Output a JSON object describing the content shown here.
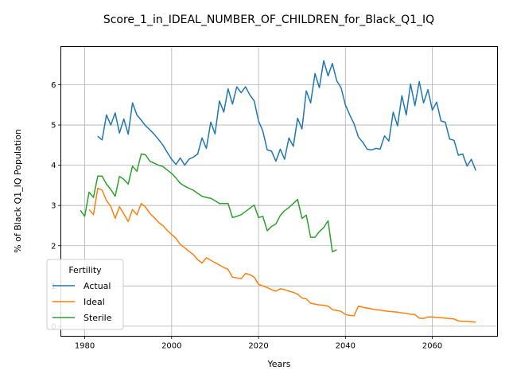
{
  "chart_data": {
    "type": "line",
    "title": "Score_1_in_IDEAL_NUMBER_OF_CHILDREN_for_Black_Q1_IQ",
    "xlabel": "Years",
    "ylabel": "% of Black Q1_IQ Population",
    "xlim": [
      1974.5,
      2075
    ],
    "ylim": [
      -0.25,
      6.95
    ],
    "xticks": [
      1980,
      2000,
      2020,
      2040,
      2060
    ],
    "yticks": [
      0,
      1,
      2,
      3,
      4,
      5,
      6
    ],
    "grid": true,
    "legend": {
      "title": "Fertility",
      "placement": "lower-left"
    },
    "series": [
      {
        "name": "Actual",
        "color": "#1f77b4",
        "points": [
          [
            1983,
            4.72
          ],
          [
            1984,
            4.63
          ],
          [
            1985,
            5.25
          ],
          [
            1986,
            5.0
          ],
          [
            1987,
            5.3
          ],
          [
            1988,
            4.8
          ],
          [
            1989,
            5.15
          ],
          [
            1990,
            4.77
          ],
          [
            1991,
            5.55
          ],
          [
            1992,
            5.25
          ],
          [
            1993,
            5.12
          ],
          [
            1994,
            4.98
          ],
          [
            1995,
            4.88
          ],
          [
            1996,
            4.77
          ],
          [
            1997,
            4.64
          ],
          [
            1998,
            4.5
          ],
          [
            1999,
            4.32
          ],
          [
            2000,
            4.15
          ],
          [
            2001,
            4.02
          ],
          [
            2002,
            4.18
          ],
          [
            2003,
            4.0
          ],
          [
            2004,
            4.15
          ],
          [
            2005,
            4.2
          ],
          [
            2006,
            4.28
          ],
          [
            2007,
            4.68
          ],
          [
            2008,
            4.42
          ],
          [
            2009,
            5.07
          ],
          [
            2010,
            4.78
          ],
          [
            2011,
            5.6
          ],
          [
            2012,
            5.32
          ],
          [
            2013,
            5.9
          ],
          [
            2014,
            5.52
          ],
          [
            2015,
            5.95
          ],
          [
            2016,
            5.8
          ],
          [
            2017,
            5.95
          ],
          [
            2018,
            5.75
          ],
          [
            2019,
            5.6
          ],
          [
            2020,
            5.1
          ],
          [
            2021,
            4.85
          ],
          [
            2022,
            4.38
          ],
          [
            2023,
            4.35
          ],
          [
            2024,
            4.1
          ],
          [
            2025,
            4.4
          ],
          [
            2026,
            4.15
          ],
          [
            2027,
            4.68
          ],
          [
            2028,
            4.47
          ],
          [
            2029,
            5.17
          ],
          [
            2030,
            4.9
          ],
          [
            2031,
            5.85
          ],
          [
            2032,
            5.55
          ],
          [
            2033,
            6.28
          ],
          [
            2034,
            5.93
          ],
          [
            2035,
            6.6
          ],
          [
            2036,
            6.22
          ],
          [
            2037,
            6.53
          ],
          [
            2038,
            6.1
          ],
          [
            2039,
            5.93
          ],
          [
            2040,
            5.5
          ],
          [
            2041,
            5.25
          ],
          [
            2042,
            5.03
          ],
          [
            2043,
            4.7
          ],
          [
            2044,
            4.57
          ],
          [
            2045,
            4.4
          ],
          [
            2046,
            4.38
          ],
          [
            2047,
            4.42
          ],
          [
            2048,
            4.4
          ],
          [
            2049,
            4.73
          ],
          [
            2050,
            4.6
          ],
          [
            2051,
            5.32
          ],
          [
            2052,
            4.98
          ],
          [
            2053,
            5.73
          ],
          [
            2054,
            5.25
          ],
          [
            2055,
            6.02
          ],
          [
            2056,
            5.48
          ],
          [
            2057,
            6.08
          ],
          [
            2058,
            5.55
          ],
          [
            2059,
            5.88
          ],
          [
            2060,
            5.37
          ],
          [
            2061,
            5.57
          ],
          [
            2062,
            5.1
          ],
          [
            2063,
            5.07
          ],
          [
            2064,
            4.65
          ],
          [
            2065,
            4.62
          ],
          [
            2066,
            4.25
          ],
          [
            2067,
            4.28
          ],
          [
            2068,
            3.98
          ],
          [
            2069,
            4.15
          ],
          [
            2070,
            3.87
          ]
        ]
      },
      {
        "name": "Ideal",
        "color": "#ff7f0e",
        "points": [
          [
            1981,
            2.9
          ],
          [
            1982,
            2.77
          ],
          [
            1983,
            3.43
          ],
          [
            1984,
            3.38
          ],
          [
            1985,
            3.12
          ],
          [
            1986,
            2.98
          ],
          [
            1987,
            2.68
          ],
          [
            1988,
            2.97
          ],
          [
            1989,
            2.79
          ],
          [
            1990,
            2.6
          ],
          [
            1991,
            2.9
          ],
          [
            1992,
            2.77
          ],
          [
            1993,
            3.05
          ],
          [
            1994,
            2.96
          ],
          [
            1995,
            2.8
          ],
          [
            1996,
            2.7
          ],
          [
            1997,
            2.58
          ],
          [
            1998,
            2.5
          ],
          [
            1999,
            2.38
          ],
          [
            2000,
            2.28
          ],
          [
            2001,
            2.18
          ],
          [
            2002,
            2.03
          ],
          [
            2003,
            1.95
          ],
          [
            2004,
            1.86
          ],
          [
            2005,
            1.78
          ],
          [
            2006,
            1.65
          ],
          [
            2007,
            1.57
          ],
          [
            2008,
            1.7
          ],
          [
            2009,
            1.64
          ],
          [
            2010,
            1.58
          ],
          [
            2011,
            1.52
          ],
          [
            2012,
            1.46
          ],
          [
            2013,
            1.41
          ],
          [
            2014,
            1.22
          ],
          [
            2015,
            1.2
          ],
          [
            2016,
            1.18
          ],
          [
            2017,
            1.31
          ],
          [
            2018,
            1.28
          ],
          [
            2019,
            1.22
          ],
          [
            2020,
            1.04
          ],
          [
            2021,
            1.0
          ],
          [
            2022,
            0.96
          ],
          [
            2023,
            0.91
          ],
          [
            2024,
            0.87
          ],
          [
            2025,
            0.93
          ],
          [
            2026,
            0.91
          ],
          [
            2027,
            0.87
          ],
          [
            2028,
            0.84
          ],
          [
            2029,
            0.8
          ],
          [
            2030,
            0.7
          ],
          [
            2031,
            0.68
          ],
          [
            2032,
            0.57
          ],
          [
            2033,
            0.55
          ],
          [
            2034,
            0.53
          ],
          [
            2035,
            0.52
          ],
          [
            2036,
            0.5
          ],
          [
            2037,
            0.41
          ],
          [
            2038,
            0.39
          ],
          [
            2039,
            0.37
          ],
          [
            2040,
            0.29
          ],
          [
            2041,
            0.27
          ],
          [
            2042,
            0.26
          ],
          [
            2043,
            0.5
          ],
          [
            2044,
            0.47
          ],
          [
            2045,
            0.45
          ],
          [
            2046,
            0.43
          ],
          [
            2047,
            0.41
          ],
          [
            2048,
            0.4
          ],
          [
            2049,
            0.38
          ],
          [
            2050,
            0.37
          ],
          [
            2051,
            0.36
          ],
          [
            2052,
            0.35
          ],
          [
            2053,
            0.33
          ],
          [
            2054,
            0.32
          ],
          [
            2055,
            0.3
          ],
          [
            2056,
            0.29
          ],
          [
            2057,
            0.2
          ],
          [
            2058,
            0.19
          ],
          [
            2059,
            0.23
          ],
          [
            2060,
            0.23
          ],
          [
            2061,
            0.22
          ],
          [
            2062,
            0.21
          ],
          [
            2063,
            0.2
          ],
          [
            2064,
            0.19
          ],
          [
            2065,
            0.18
          ],
          [
            2066,
            0.13
          ],
          [
            2067,
            0.12
          ],
          [
            2068,
            0.12
          ],
          [
            2069,
            0.11
          ],
          [
            2070,
            0.1
          ]
        ]
      },
      {
        "name": "Sterile",
        "color": "#2ca02c",
        "points": [
          [
            1979,
            2.88
          ],
          [
            1980,
            2.73
          ],
          [
            1981,
            3.33
          ],
          [
            1982,
            3.2
          ],
          [
            1983,
            3.73
          ],
          [
            1984,
            3.73
          ],
          [
            1985,
            3.53
          ],
          [
            1986,
            3.4
          ],
          [
            1987,
            3.23
          ],
          [
            1988,
            3.72
          ],
          [
            1989,
            3.65
          ],
          [
            1990,
            3.53
          ],
          [
            1991,
            3.98
          ],
          [
            1992,
            3.85
          ],
          [
            1993,
            4.28
          ],
          [
            1994,
            4.26
          ],
          [
            1995,
            4.1
          ],
          [
            1996,
            4.05
          ],
          [
            1997,
            4.0
          ],
          [
            1998,
            3.97
          ],
          [
            1999,
            3.88
          ],
          [
            2000,
            3.8
          ],
          [
            2001,
            3.68
          ],
          [
            2002,
            3.55
          ],
          [
            2003,
            3.48
          ],
          [
            2004,
            3.43
          ],
          [
            2005,
            3.38
          ],
          [
            2006,
            3.3
          ],
          [
            2007,
            3.23
          ],
          [
            2008,
            3.2
          ],
          [
            2009,
            3.18
          ],
          [
            2010,
            3.12
          ],
          [
            2011,
            3.05
          ],
          [
            2012,
            3.05
          ],
          [
            2013,
            3.05
          ],
          [
            2014,
            2.7
          ],
          [
            2015,
            2.73
          ],
          [
            2016,
            2.77
          ],
          [
            2017,
            2.85
          ],
          [
            2018,
            2.93
          ],
          [
            2019,
            3.01
          ],
          [
            2020,
            2.7
          ],
          [
            2021,
            2.73
          ],
          [
            2022,
            2.37
          ],
          [
            2023,
            2.48
          ],
          [
            2024,
            2.54
          ],
          [
            2025,
            2.75
          ],
          [
            2026,
            2.87
          ],
          [
            2027,
            2.95
          ],
          [
            2028,
            3.05
          ],
          [
            2029,
            3.15
          ],
          [
            2030,
            2.68
          ],
          [
            2031,
            2.76
          ],
          [
            2032,
            2.21
          ],
          [
            2033,
            2.21
          ],
          [
            2034,
            2.35
          ],
          [
            2035,
            2.45
          ],
          [
            2036,
            2.62
          ],
          [
            2037,
            1.85
          ],
          [
            2038,
            1.9
          ]
        ]
      }
    ]
  }
}
